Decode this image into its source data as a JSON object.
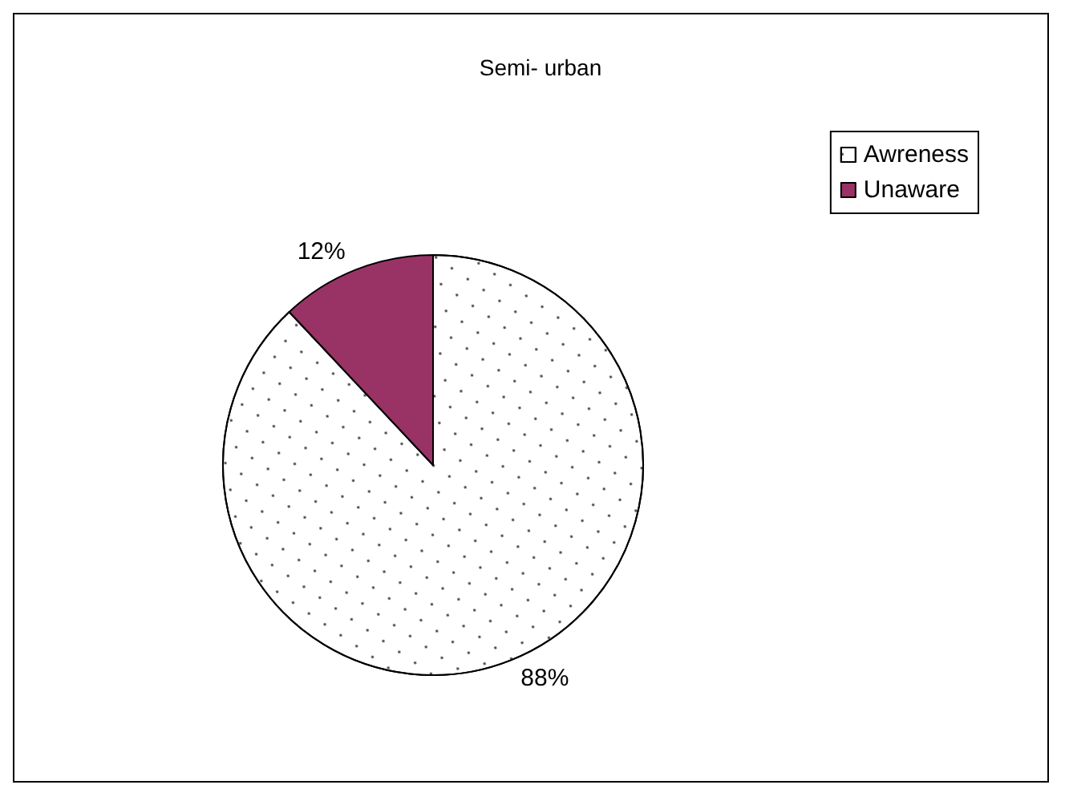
{
  "chart_data": {
    "type": "pie",
    "title": "Semi- urban",
    "categories": [
      "Awreness",
      "Unaware"
    ],
    "values": [
      88,
      12
    ],
    "colors": [
      "#ffffff",
      "#993366"
    ],
    "value_labels": [
      "88%",
      "12%"
    ],
    "legend": "top right"
  }
}
